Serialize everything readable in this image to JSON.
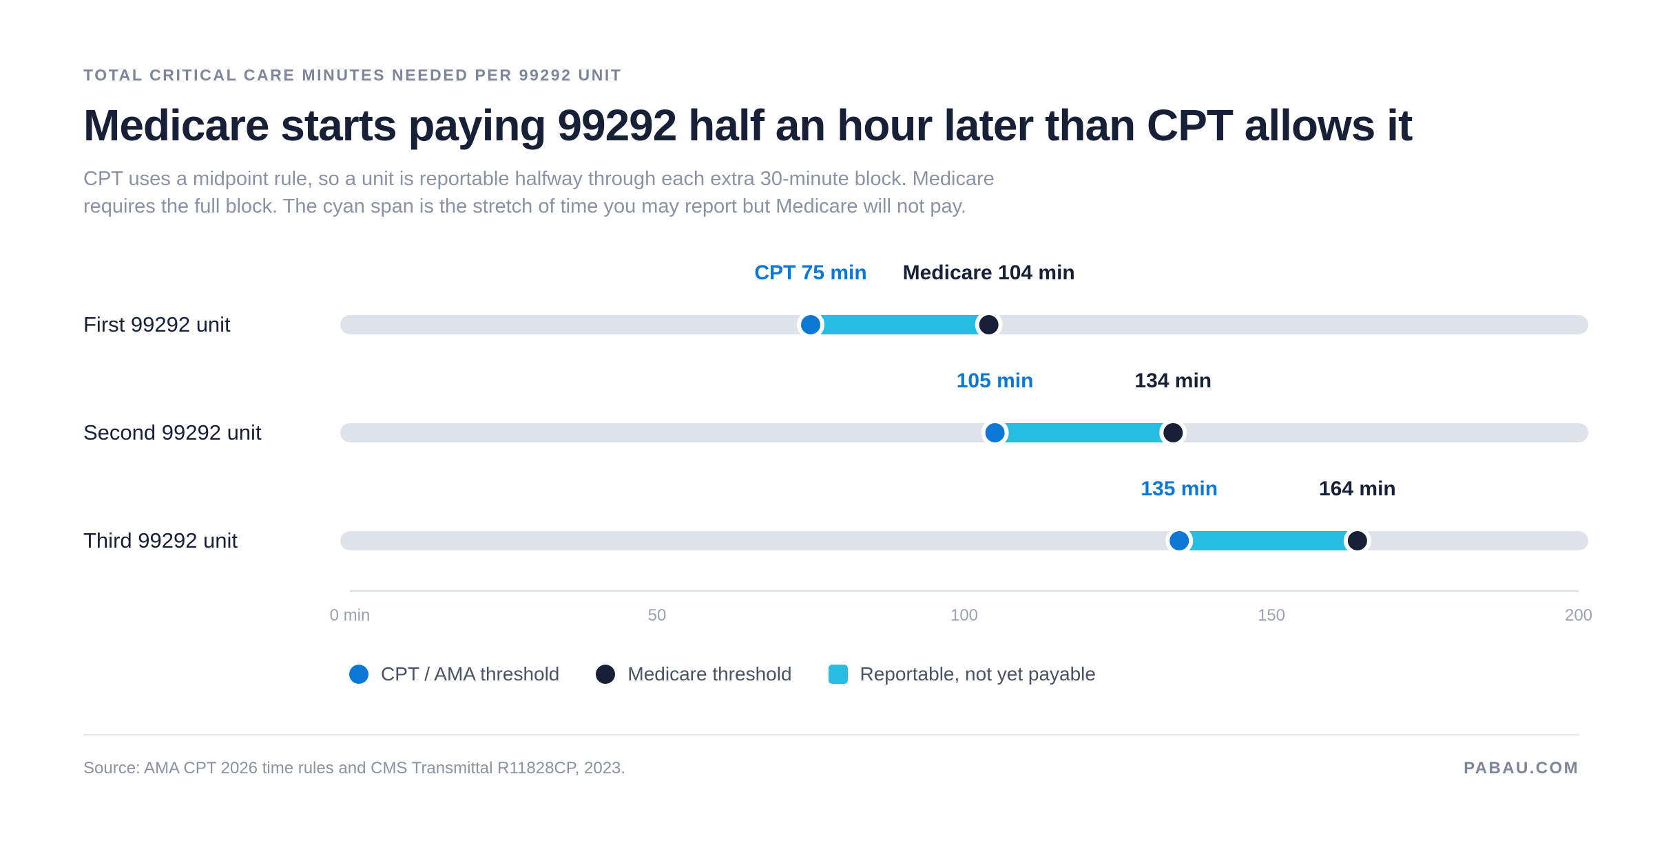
{
  "header": {
    "eyebrow": "TOTAL CRITICAL CARE MINUTES NEEDED PER 99292 UNIT",
    "title": "Medicare starts paying 99292 half an hour later than CPT allows it",
    "subtitle": "CPT uses a midpoint rule, so a unit is reportable halfway through each extra 30-minute block. Medicare requires the full block. The cyan span is the stretch of time you may report but Medicare will not pay."
  },
  "chart_data": {
    "type": "dumbbell",
    "xlim": [
      0,
      200
    ],
    "x_ticks": [
      {
        "value": 0,
        "label": "0 min"
      },
      {
        "value": 50,
        "label": "50"
      },
      {
        "value": 100,
        "label": "100"
      },
      {
        "value": 150,
        "label": "150"
      },
      {
        "value": 200,
        "label": "200"
      }
    ],
    "rows": [
      {
        "label": "First 99292 unit",
        "cpt": 75,
        "medicare": 104,
        "cpt_label": "CPT 75 min",
        "medicare_label": "Medicare 104 min"
      },
      {
        "label": "Second 99292 unit",
        "cpt": 105,
        "medicare": 134,
        "cpt_label": "105 min",
        "medicare_label": "134 min"
      },
      {
        "label": "Third 99292 unit",
        "cpt": 135,
        "medicare": 164,
        "cpt_label": "135 min",
        "medicare_label": "164 min"
      }
    ],
    "colors": {
      "cpt": "#0a78d4",
      "medicare": "#172036",
      "span": "#27bde3",
      "track": "#dee2ea"
    }
  },
  "legend": {
    "items": [
      {
        "label": "CPT / AMA threshold",
        "shape": "dot",
        "color": "#0a78d4"
      },
      {
        "label": "Medicare threshold",
        "shape": "dot",
        "color": "#172036"
      },
      {
        "label": "Reportable, not yet payable",
        "shape": "square",
        "color": "#27bde3"
      }
    ]
  },
  "footer": {
    "source": "Source: AMA CPT 2026 time rules and CMS Transmittal R11828CP, 2023.",
    "brand": "PABAU.COM"
  }
}
